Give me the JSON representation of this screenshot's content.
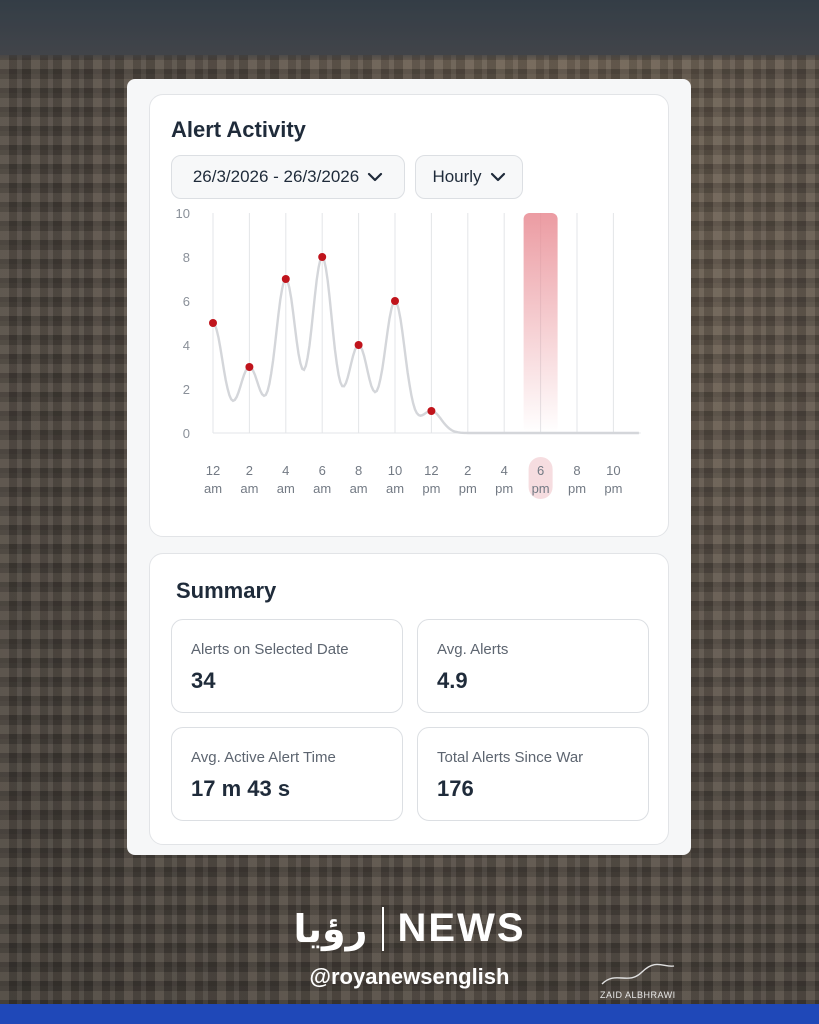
{
  "activity": {
    "title": "Alert Activity",
    "date_range": "26/3/2026 - 26/3/2026",
    "interval": "Hourly"
  },
  "chart_data": {
    "type": "line",
    "title": "",
    "xlabel": "",
    "ylabel": "",
    "ylim": [
      0,
      10
    ],
    "y_ticks": [
      "0",
      "2",
      "4",
      "6",
      "8",
      "10"
    ],
    "x_ticks": [
      [
        "12",
        "am"
      ],
      [
        "2",
        "am"
      ],
      [
        "4",
        "am"
      ],
      [
        "6",
        "am"
      ],
      [
        "8",
        "am"
      ],
      [
        "10",
        "am"
      ],
      [
        "12",
        "pm"
      ],
      [
        "2",
        "pm"
      ],
      [
        "4",
        "pm"
      ],
      [
        "6",
        "pm"
      ],
      [
        "8",
        "pm"
      ],
      [
        "10",
        "pm"
      ]
    ],
    "x": [
      0,
      2,
      4,
      6,
      8,
      10,
      12
    ],
    "values": [
      5,
      3,
      7,
      8,
      4,
      6,
      1
    ],
    "highlight_hour": 18,
    "colors": {
      "line": "#d4d6da",
      "point": "#c0141c",
      "highlight": "#e88a92"
    }
  },
  "summary": {
    "title": "Summary",
    "stats": [
      {
        "label": "Alerts on Selected Date",
        "value": "34"
      },
      {
        "label": "Avg. Alerts",
        "value": "4.9"
      },
      {
        "label": "Avg. Active Alert Time",
        "value": "17 m 43 s"
      },
      {
        "label": "Total Alerts Since War",
        "value": "176"
      }
    ]
  },
  "branding": {
    "arabic_logo": "رؤيا",
    "news": "NEWS",
    "handle": "@royanewsenglish",
    "signature": "ZAID ALBHRAWI"
  }
}
